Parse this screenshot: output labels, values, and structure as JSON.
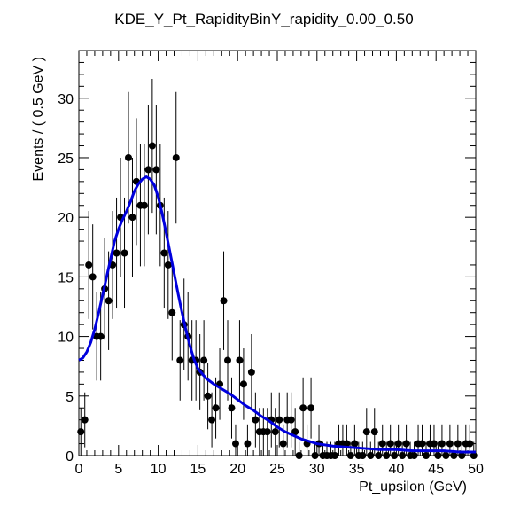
{
  "chart_data": {
    "type": "scatter",
    "title": "KDE_Y_Pt_RapidityBinY_rapidity_0.00_0.50",
    "xlabel": "Pt_upsilon (GeV)",
    "ylabel": "Events / ( 0.5 GeV )",
    "xlim": [
      0,
      50
    ],
    "ylim": [
      0,
      34
    ],
    "x_ticks": [
      "0",
      "5",
      "10",
      "15",
      "20",
      "25",
      "30",
      "35",
      "40",
      "45",
      "50"
    ],
    "y_ticks": [
      "0",
      "5",
      "10",
      "15",
      "20",
      "25",
      "30"
    ],
    "grid": false,
    "legend": "none",
    "series": [
      {
        "type": "points-with-error-bars",
        "color": "#000000",
        "x": [
          0.25,
          0.75,
          1.25,
          1.75,
          2.25,
          2.75,
          3.25,
          3.75,
          4.25,
          4.75,
          5.25,
          5.75,
          6.25,
          6.75,
          7.25,
          7.75,
          8.25,
          8.75,
          9.25,
          9.75,
          10.25,
          10.75,
          11.25,
          11.75,
          12.25,
          12.75,
          13.25,
          13.75,
          14.25,
          14.75,
          15.25,
          15.75,
          16.25,
          16.75,
          17.25,
          17.75,
          18.25,
          18.75,
          19.25,
          19.75,
          20.25,
          20.75,
          21.25,
          21.75,
          22.25,
          22.75,
          23.25,
          23.75,
          24.25,
          24.75,
          25.25,
          25.75,
          26.25,
          26.75,
          27.25,
          27.75,
          28.25,
          28.75,
          29.25,
          29.75,
          30.25,
          30.75,
          31.25,
          31.75,
          32.25,
          32.75,
          33.25,
          33.75,
          34.25,
          34.75,
          35.25,
          35.75,
          36.25,
          36.75,
          37.25,
          37.75,
          38.25,
          38.75,
          39.25,
          39.75,
          40.25,
          40.75,
          41.25,
          41.75,
          42.25,
          42.75,
          43.25,
          43.75,
          44.25,
          44.75,
          45.25,
          45.75,
          46.25,
          46.75,
          47.25,
          47.75,
          48.25,
          48.75,
          49.25,
          49.75
        ],
        "y": [
          2,
          3,
          16,
          15,
          10,
          10,
          14,
          13,
          16,
          17,
          20,
          17,
          25,
          20,
          23,
          21,
          21,
          24,
          26,
          24,
          21,
          17,
          16,
          12,
          25,
          8,
          11,
          10,
          8,
          8,
          7,
          8,
          5,
          3,
          4,
          6,
          13,
          8,
          4,
          1,
          8,
          6,
          1,
          7,
          3,
          2,
          2,
          2,
          3,
          2,
          3,
          1,
          3,
          3,
          2,
          0,
          4,
          1,
          4,
          0,
          1,
          0,
          0,
          0,
          0,
          1,
          1,
          1,
          0,
          1,
          0,
          0,
          2,
          0,
          2,
          0,
          1,
          0,
          1,
          0,
          1,
          0,
          1,
          0,
          0,
          1,
          1,
          0,
          1,
          1,
          0,
          1,
          0,
          1,
          0,
          1,
          0,
          1,
          1,
          0
        ]
      },
      {
        "type": "line",
        "color": "#0000dd",
        "x": [
          0,
          0.5,
          1,
          1.5,
          2,
          2.5,
          3,
          3.5,
          4,
          4.5,
          5,
          5.5,
          6,
          6.5,
          7,
          7.5,
          8,
          8.5,
          9,
          9.5,
          10,
          10.5,
          11,
          11.5,
          12,
          12.5,
          13,
          13.5,
          14,
          14.5,
          15,
          16,
          17,
          18,
          19,
          20,
          21,
          22,
          23,
          24,
          25,
          26,
          27,
          28,
          29,
          30,
          32,
          34,
          36,
          38,
          40,
          42,
          44,
          46,
          48,
          50
        ],
        "y": [
          8,
          8.2,
          8.7,
          9.5,
          10.6,
          12,
          13.5,
          15,
          16.5,
          18,
          19,
          19.8,
          20.5,
          21.3,
          22.2,
          22.8,
          23.2,
          23.4,
          23.2,
          22.7,
          21.7,
          20.3,
          18.7,
          17,
          15.3,
          13.6,
          12,
          10.5,
          9.2,
          8.1,
          7.3,
          6.5,
          6,
          5.6,
          5.2,
          4.7,
          4.2,
          3.8,
          3.3,
          2.9,
          2.4,
          2,
          1.7,
          1.4,
          1.2,
          1,
          0.8,
          0.7,
          0.6,
          0.5,
          0.5,
          0.4,
          0.4,
          0.4,
          0.3,
          0.3
        ]
      }
    ]
  }
}
